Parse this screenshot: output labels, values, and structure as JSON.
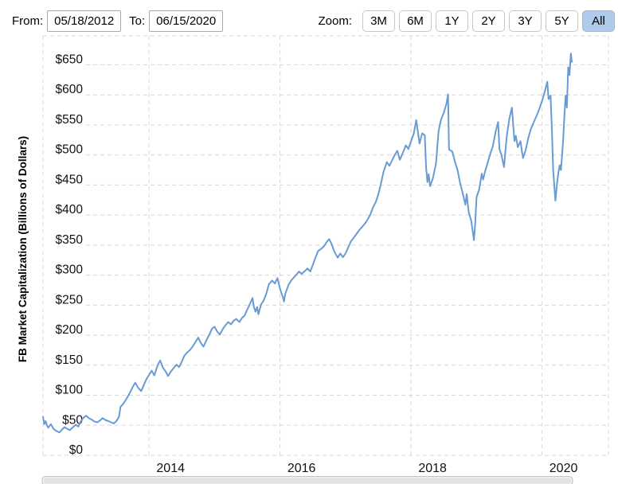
{
  "toolbar": {
    "from_label": "From:",
    "from_value": "05/18/2012",
    "to_label": "To:",
    "to_value": "06/15/2020",
    "zoom_label": "Zoom:",
    "zoom_buttons": [
      "3M",
      "6M",
      "1Y",
      "2Y",
      "3Y",
      "5Y",
      "All"
    ],
    "active_zoom": "All"
  },
  "chart_data": {
    "type": "line",
    "title": "",
    "xlabel": "",
    "ylabel": "FB Market Capitalization (Billions of Dollars)",
    "x_range": [
      2012.38,
      2020.455
    ],
    "ylim": [
      0,
      650
    ],
    "grid": true,
    "grid_style": "dashed",
    "legend": false,
    "y_ticks": [
      {
        "value": 0,
        "label": "$0"
      },
      {
        "value": 50,
        "label": "$50"
      },
      {
        "value": 100,
        "label": "$100"
      },
      {
        "value": 150,
        "label": "$150"
      },
      {
        "value": 200,
        "label": "$200"
      },
      {
        "value": 250,
        "label": "$250"
      },
      {
        "value": 300,
        "label": "$300"
      },
      {
        "value": 350,
        "label": "$350"
      },
      {
        "value": 400,
        "label": "$400"
      },
      {
        "value": 450,
        "label": "$450"
      },
      {
        "value": 500,
        "label": "$500"
      },
      {
        "value": 550,
        "label": "$550"
      },
      {
        "value": 600,
        "label": "$600"
      },
      {
        "value": 650,
        "label": "$650"
      }
    ],
    "x_ticks": [
      {
        "value": 2014,
        "label": "2014"
      },
      {
        "value": 2016,
        "label": "2016"
      },
      {
        "value": 2018,
        "label": "2018"
      },
      {
        "value": 2020,
        "label": "2020"
      }
    ],
    "colors": {
      "line": "#689bd3",
      "grid": "#d8d8d8",
      "tick_text": "#111111",
      "axis_title": "#000000",
      "active_button_bg": "#aecbeb",
      "scrollbar_track": "#efefef",
      "scrollbar_border": "#c3c3c3",
      "scrollbar_thumb": "#e3e3e3"
    },
    "series": [
      {
        "name": "FB Market Capitalization",
        "unit": "Billions of Dollars",
        "points": [
          [
            2012.38,
            64
          ],
          [
            2012.4,
            52
          ],
          [
            2012.42,
            57
          ],
          [
            2012.44,
            50
          ],
          [
            2012.46,
            46
          ],
          [
            2012.5,
            52
          ],
          [
            2012.54,
            44
          ],
          [
            2012.58,
            41
          ],
          [
            2012.63,
            38
          ],
          [
            2012.67,
            43
          ],
          [
            2012.71,
            47
          ],
          [
            2012.75,
            44
          ],
          [
            2012.79,
            42
          ],
          [
            2012.83,
            46
          ],
          [
            2012.88,
            51
          ],
          [
            2012.92,
            48
          ],
          [
            2012.96,
            57
          ],
          [
            2013.0,
            63
          ],
          [
            2013.04,
            66
          ],
          [
            2013.08,
            62
          ],
          [
            2013.13,
            59
          ],
          [
            2013.17,
            56
          ],
          [
            2013.21,
            55
          ],
          [
            2013.25,
            58
          ],
          [
            2013.29,
            62
          ],
          [
            2013.33,
            59
          ],
          [
            2013.38,
            57
          ],
          [
            2013.42,
            55
          ],
          [
            2013.46,
            53
          ],
          [
            2013.5,
            57
          ],
          [
            2013.54,
            64
          ],
          [
            2013.565,
            81
          ],
          [
            2013.6,
            85
          ],
          [
            2013.63,
            90
          ],
          [
            2013.67,
            97
          ],
          [
            2013.71,
            105
          ],
          [
            2013.75,
            114
          ],
          [
            2013.79,
            121
          ],
          [
            2013.83,
            113
          ],
          [
            2013.88,
            107
          ],
          [
            2013.92,
            117
          ],
          [
            2013.96,
            127
          ],
          [
            2014.0,
            134
          ],
          [
            2014.04,
            141
          ],
          [
            2014.08,
            133
          ],
          [
            2014.13,
            150
          ],
          [
            2014.17,
            158
          ],
          [
            2014.21,
            146
          ],
          [
            2014.25,
            140
          ],
          [
            2014.29,
            132
          ],
          [
            2014.33,
            139
          ],
          [
            2014.38,
            146
          ],
          [
            2014.42,
            151
          ],
          [
            2014.46,
            147
          ],
          [
            2014.5,
            156
          ],
          [
            2014.54,
            166
          ],
          [
            2014.58,
            171
          ],
          [
            2014.63,
            176
          ],
          [
            2014.67,
            182
          ],
          [
            2014.71,
            189
          ],
          [
            2014.75,
            196
          ],
          [
            2014.79,
            187
          ],
          [
            2014.83,
            181
          ],
          [
            2014.88,
            193
          ],
          [
            2014.92,
            201
          ],
          [
            2014.96,
            211
          ],
          [
            2015.0,
            214
          ],
          [
            2015.04,
            206
          ],
          [
            2015.08,
            201
          ],
          [
            2015.13,
            211
          ],
          [
            2015.17,
            217
          ],
          [
            2015.21,
            222
          ],
          [
            2015.25,
            218
          ],
          [
            2015.29,
            224
          ],
          [
            2015.33,
            227
          ],
          [
            2015.38,
            222
          ],
          [
            2015.42,
            229
          ],
          [
            2015.46,
            233
          ],
          [
            2015.5,
            243
          ],
          [
            2015.54,
            252
          ],
          [
            2015.58,
            262
          ],
          [
            2015.6,
            247
          ],
          [
            2015.625,
            239
          ],
          [
            2015.65,
            247
          ],
          [
            2015.67,
            235
          ],
          [
            2015.71,
            251
          ],
          [
            2015.75,
            258
          ],
          [
            2015.79,
            269
          ],
          [
            2015.83,
            285
          ],
          [
            2015.88,
            291
          ],
          [
            2015.92,
            286
          ],
          [
            2015.96,
            295
          ],
          [
            2016.0,
            277
          ],
          [
            2016.04,
            264
          ],
          [
            2016.06,
            256
          ],
          [
            2016.08,
            269
          ],
          [
            2016.13,
            284
          ],
          [
            2016.17,
            291
          ],
          [
            2016.21,
            296
          ],
          [
            2016.25,
            301
          ],
          [
            2016.29,
            306
          ],
          [
            2016.33,
            302
          ],
          [
            2016.38,
            307
          ],
          [
            2016.42,
            311
          ],
          [
            2016.46,
            306
          ],
          [
            2016.5,
            317
          ],
          [
            2016.54,
            329
          ],
          [
            2016.58,
            340
          ],
          [
            2016.63,
            344
          ],
          [
            2016.67,
            348
          ],
          [
            2016.71,
            355
          ],
          [
            2016.75,
            360
          ],
          [
            2016.79,
            351
          ],
          [
            2016.83,
            339
          ],
          [
            2016.88,
            329
          ],
          [
            2016.92,
            336
          ],
          [
            2016.96,
            330
          ],
          [
            2017.0,
            336
          ],
          [
            2017.04,
            346
          ],
          [
            2017.08,
            356
          ],
          [
            2017.13,
            363
          ],
          [
            2017.17,
            369
          ],
          [
            2017.21,
            375
          ],
          [
            2017.25,
            380
          ],
          [
            2017.29,
            385
          ],
          [
            2017.33,
            391
          ],
          [
            2017.38,
            401
          ],
          [
            2017.42,
            413
          ],
          [
            2017.46,
            421
          ],
          [
            2017.5,
            434
          ],
          [
            2017.54,
            452
          ],
          [
            2017.58,
            472
          ],
          [
            2017.63,
            488
          ],
          [
            2017.67,
            482
          ],
          [
            2017.71,
            491
          ],
          [
            2017.75,
            500
          ],
          [
            2017.79,
            507
          ],
          [
            2017.83,
            492
          ],
          [
            2017.88,
            505
          ],
          [
            2017.92,
            516
          ],
          [
            2017.96,
            510
          ],
          [
            2018.0,
            523
          ],
          [
            2018.04,
            535
          ],
          [
            2018.08,
            558
          ],
          [
            2018.13,
            519
          ],
          [
            2018.17,
            536
          ],
          [
            2018.21,
            533
          ],
          [
            2018.23,
            480
          ],
          [
            2018.25,
            455
          ],
          [
            2018.27,
            468
          ],
          [
            2018.29,
            448
          ],
          [
            2018.33,
            460
          ],
          [
            2018.38,
            485
          ],
          [
            2018.42,
            540
          ],
          [
            2018.46,
            560
          ],
          [
            2018.5,
            570
          ],
          [
            2018.54,
            585
          ],
          [
            2018.565,
            601
          ],
          [
            2018.58,
            509
          ],
          [
            2018.63,
            506
          ],
          [
            2018.67,
            489
          ],
          [
            2018.71,
            475
          ],
          [
            2018.75,
            453
          ],
          [
            2018.79,
            436
          ],
          [
            2018.83,
            417
          ],
          [
            2018.85,
            435
          ],
          [
            2018.88,
            405
          ],
          [
            2018.92,
            390
          ],
          [
            2018.96,
            358
          ],
          [
            2018.98,
            386
          ],
          [
            2019.0,
            430
          ],
          [
            2019.04,
            442
          ],
          [
            2019.08,
            469
          ],
          [
            2019.1,
            459
          ],
          [
            2019.13,
            472
          ],
          [
            2019.17,
            487
          ],
          [
            2019.21,
            502
          ],
          [
            2019.25,
            515
          ],
          [
            2019.29,
            538
          ],
          [
            2019.33,
            555
          ],
          [
            2019.35,
            510
          ],
          [
            2019.38,
            500
          ],
          [
            2019.42,
            480
          ],
          [
            2019.46,
            530
          ],
          [
            2019.5,
            560
          ],
          [
            2019.54,
            579
          ],
          [
            2019.58,
            523
          ],
          [
            2019.6,
            532
          ],
          [
            2019.63,
            513
          ],
          [
            2019.67,
            523
          ],
          [
            2019.71,
            495
          ],
          [
            2019.75,
            508
          ],
          [
            2019.79,
            528
          ],
          [
            2019.83,
            543
          ],
          [
            2019.88,
            556
          ],
          [
            2019.92,
            566
          ],
          [
            2019.96,
            577
          ],
          [
            2020.0,
            590
          ],
          [
            2020.04,
            605
          ],
          [
            2020.08,
            622
          ],
          [
            2020.1,
            593
          ],
          [
            2020.13,
            599
          ],
          [
            2020.15,
            546
          ],
          [
            2020.17,
            475
          ],
          [
            2020.205,
            424
          ],
          [
            2020.23,
            453
          ],
          [
            2020.25,
            470
          ],
          [
            2020.27,
            483
          ],
          [
            2020.29,
            475
          ],
          [
            2020.32,
            520
          ],
          [
            2020.34,
            560
          ],
          [
            2020.36,
            599
          ],
          [
            2020.38,
            579
          ],
          [
            2020.4,
            646
          ],
          [
            2020.42,
            633
          ],
          [
            2020.44,
            669
          ],
          [
            2020.455,
            655
          ]
        ]
      }
    ]
  }
}
